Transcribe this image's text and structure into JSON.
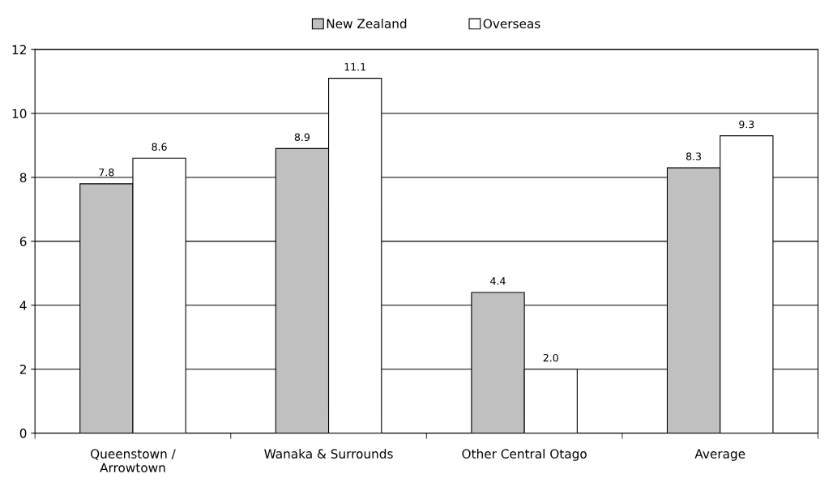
{
  "chart_data": {
    "type": "bar",
    "categories": [
      "Queenstown /\nArrowtown",
      "Wanaka & Surrounds",
      "Other Central Otago",
      "Average"
    ],
    "series": [
      {
        "name": "New Zealand",
        "color": "#c0c0c0",
        "values": [
          7.8,
          8.9,
          4.4,
          8.3
        ],
        "value_labels": [
          "7.8",
          "8.9",
          "4.4",
          "8.3"
        ]
      },
      {
        "name": "Overseas",
        "color": "#ffffff",
        "values": [
          8.6,
          11.1,
          2.0,
          9.3
        ],
        "value_labels": [
          "8.6",
          "11.1",
          "2.0",
          "9.3"
        ]
      }
    ],
    "ylim": [
      0,
      12
    ],
    "yticks": [
      0,
      2,
      4,
      6,
      8,
      10,
      12
    ],
    "grid": "y",
    "legend": "top"
  }
}
